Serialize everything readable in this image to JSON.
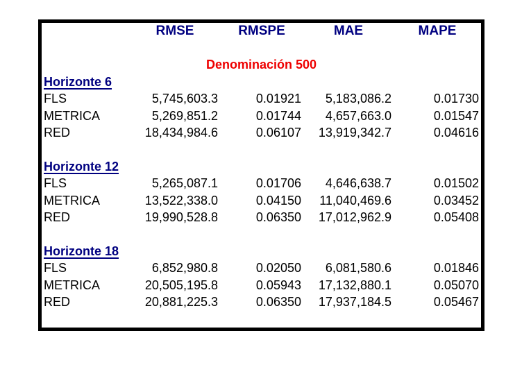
{
  "table": {
    "corner_label": "",
    "columns": [
      "RMSE",
      "RMSPE",
      "MAE",
      "MAPE"
    ],
    "title": "Denominación 500",
    "colors": {
      "header_text": "#000080",
      "title_text": "#ee0000",
      "body_text": "#000000",
      "border": "#000000",
      "background": "#ffffff"
    },
    "sections": [
      {
        "label": "Horizonte 6",
        "rows": [
          {
            "name": "FLS",
            "rmse": "5,745,603.3",
            "rmspe": "0.01921",
            "mae": "5,183,086.2",
            "mape": "0.01730"
          },
          {
            "name": "METRICA",
            "rmse": "5,269,851.2",
            "rmspe": "0.01744",
            "mae": "4,657,663.0",
            "mape": "0.01547"
          },
          {
            "name": "RED",
            "rmse": "18,434,984.6",
            "rmspe": "0.06107",
            "mae": "13,919,342.7",
            "mape": "0.04616"
          }
        ]
      },
      {
        "label": "Horizonte 12",
        "rows": [
          {
            "name": "FLS",
            "rmse": "5,265,087.1",
            "rmspe": "0.01706",
            "mae": "4,646,638.7",
            "mape": "0.01502"
          },
          {
            "name": "METRICA",
            "rmse": "13,522,338.0",
            "rmspe": "0.04150",
            "mae": "11,040,469.6",
            "mape": "0.03452"
          },
          {
            "name": "RED",
            "rmse": "19,990,528.8",
            "rmspe": "0.06350",
            "mae": "17,012,962.9",
            "mape": "0.05408"
          }
        ]
      },
      {
        "label": "Horizonte 18",
        "rows": [
          {
            "name": "FLS",
            "rmse": "6,852,980.8",
            "rmspe": "0.02050",
            "mae": "6,081,580.6",
            "mape": "0.01846"
          },
          {
            "name": "METRICA",
            "rmse": "20,505,195.8",
            "rmspe": "0.05943",
            "mae": "17,132,880.1",
            "mape": "0.05070"
          },
          {
            "name": "RED",
            "rmse": "20,881,225.3",
            "rmspe": "0.06350",
            "mae": "17,937,184.5",
            "mape": "0.05467"
          }
        ]
      }
    ]
  }
}
